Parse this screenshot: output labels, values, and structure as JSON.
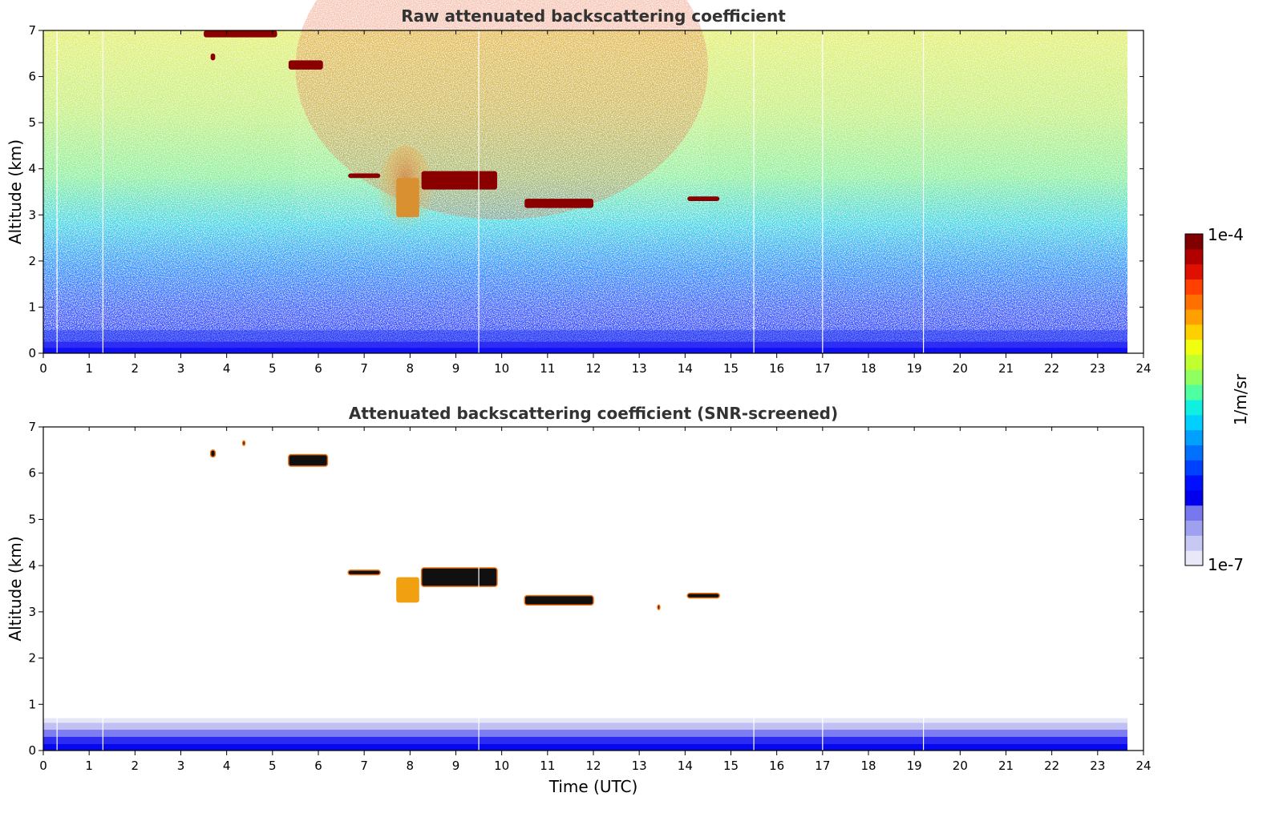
{
  "chart_data": [
    {
      "type": "heatmap",
      "title": "Raw attenuated backscattering coefficient",
      "xlabel": "",
      "ylabel": "Altitude (km)",
      "xlim": [
        0,
        24
      ],
      "ylim": [
        0,
        7
      ],
      "xticks": [
        0,
        1,
        2,
        3,
        4,
        5,
        6,
        7,
        8,
        9,
        10,
        11,
        12,
        13,
        14,
        15,
        16,
        17,
        18,
        19,
        20,
        21,
        22,
        23,
        24
      ],
      "yticks": [
        0,
        1,
        2,
        3,
        4,
        5,
        6,
        7
      ],
      "data_end_hour": 23.65,
      "gap_lines_hours": [
        0.3,
        1.3,
        9.5,
        15.5,
        17.0,
        19.2
      ],
      "noise_background": true,
      "features": [
        {
          "kind": "cloud",
          "x": [
            3.5,
            5.1
          ],
          "y": [
            6.85,
            7.0
          ]
        },
        {
          "kind": "cloud",
          "x": [
            3.65,
            3.75
          ],
          "y": [
            6.35,
            6.5
          ]
        },
        {
          "kind": "cloud",
          "x": [
            5.35,
            6.1
          ],
          "y": [
            6.15,
            6.35
          ]
        },
        {
          "kind": "cloud",
          "x": [
            6.65,
            7.35
          ],
          "y": [
            3.8,
            3.9
          ]
        },
        {
          "kind": "cloud",
          "x": [
            8.25,
            9.9
          ],
          "y": [
            3.55,
            3.95
          ]
        },
        {
          "kind": "cloud",
          "x": [
            10.5,
            12.0
          ],
          "y": [
            3.15,
            3.35
          ]
        },
        {
          "kind": "cloud",
          "x": [
            14.05,
            14.75
          ],
          "y": [
            3.3,
            3.4
          ]
        },
        {
          "kind": "aerosol",
          "x": [
            7.7,
            8.2
          ],
          "y": [
            2.95,
            3.8
          ]
        }
      ]
    },
    {
      "type": "heatmap",
      "title": "Attenuated backscattering coefficient (SNR-screened)",
      "xlabel": "Time (UTC)",
      "ylabel": "Altitude (km)",
      "xlim": [
        0,
        24
      ],
      "ylim": [
        0,
        7
      ],
      "xticks": [
        0,
        1,
        2,
        3,
        4,
        5,
        6,
        7,
        8,
        9,
        10,
        11,
        12,
        13,
        14,
        15,
        16,
        17,
        18,
        19,
        20,
        21,
        22,
        23,
        24
      ],
      "yticks": [
        0,
        1,
        2,
        3,
        4,
        5,
        6,
        7
      ],
      "data_end_hour": 23.65,
      "gap_lines_hours": [
        0.3,
        1.3,
        9.5,
        15.5,
        17.0,
        19.2
      ],
      "noise_background": false,
      "features": [
        {
          "kind": "cloud",
          "x": [
            3.65,
            3.75
          ],
          "y": [
            6.35,
            6.5
          ]
        },
        {
          "kind": "cloud",
          "x": [
            4.35,
            4.4
          ],
          "y": [
            6.6,
            6.7
          ]
        },
        {
          "kind": "cloud",
          "x": [
            5.35,
            6.2
          ],
          "y": [
            6.15,
            6.4
          ]
        },
        {
          "kind": "cloud",
          "x": [
            6.65,
            7.35
          ],
          "y": [
            3.8,
            3.9
          ]
        },
        {
          "kind": "cloud",
          "x": [
            8.25,
            9.9
          ],
          "y": [
            3.55,
            3.95
          ]
        },
        {
          "kind": "cloud",
          "x": [
            10.5,
            12.0
          ],
          "y": [
            3.15,
            3.35
          ]
        },
        {
          "kind": "cloud",
          "x": [
            13.4,
            13.45
          ],
          "y": [
            3.05,
            3.15
          ]
        },
        {
          "kind": "cloud",
          "x": [
            14.05,
            14.75
          ],
          "y": [
            3.3,
            3.4
          ]
        },
        {
          "kind": "aerosol",
          "x": [
            7.7,
            8.2
          ],
          "y": [
            3.2,
            3.75
          ]
        }
      ]
    }
  ],
  "colorbar": {
    "max_label": "1e-4",
    "min_label": "1e-7",
    "units_label": "1/m/sr",
    "colors": [
      "#e8e8f8",
      "#c8c8f4",
      "#a0a0f0",
      "#7878ee",
      "#0000ee",
      "#0010ff",
      "#0040ff",
      "#0070ff",
      "#00a0ff",
      "#00d0ff",
      "#10f0e0",
      "#50ffa0",
      "#90ff60",
      "#c0ff30",
      "#f0ff10",
      "#ffd000",
      "#ffa000",
      "#ff7000",
      "#ff4000",
      "#e01000",
      "#b00000",
      "#800000"
    ]
  }
}
